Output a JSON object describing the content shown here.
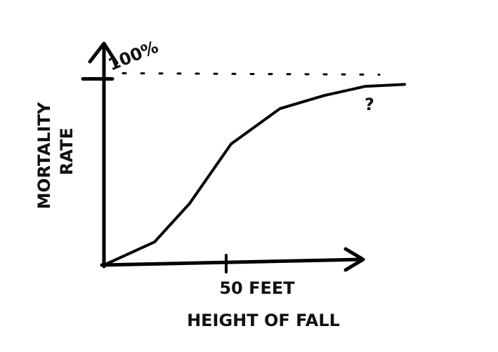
{
  "chart_data": {
    "type": "line",
    "ylabel": [
      "MORTALITY",
      "RATE"
    ],
    "xlabel": "HEIGHT OF FALL",
    "annotation": "?",
    "x": [
      0,
      20.7,
      35,
      52,
      72,
      90,
      107,
      123
    ],
    "series": [
      {
        "color": "#000000",
        "values": [
          0,
          12.4,
          33,
          65,
          84,
          91,
          96,
          97
        ]
      }
    ],
    "xlim": [
      0,
      123
    ],
    "ylim": [
      0,
      119
    ],
    "xticks": [
      {
        "value": 50,
        "label": "50 FEET"
      }
    ],
    "yticks": [
      {
        "value": 100,
        "label": "100%"
      }
    ],
    "grid": true
  }
}
